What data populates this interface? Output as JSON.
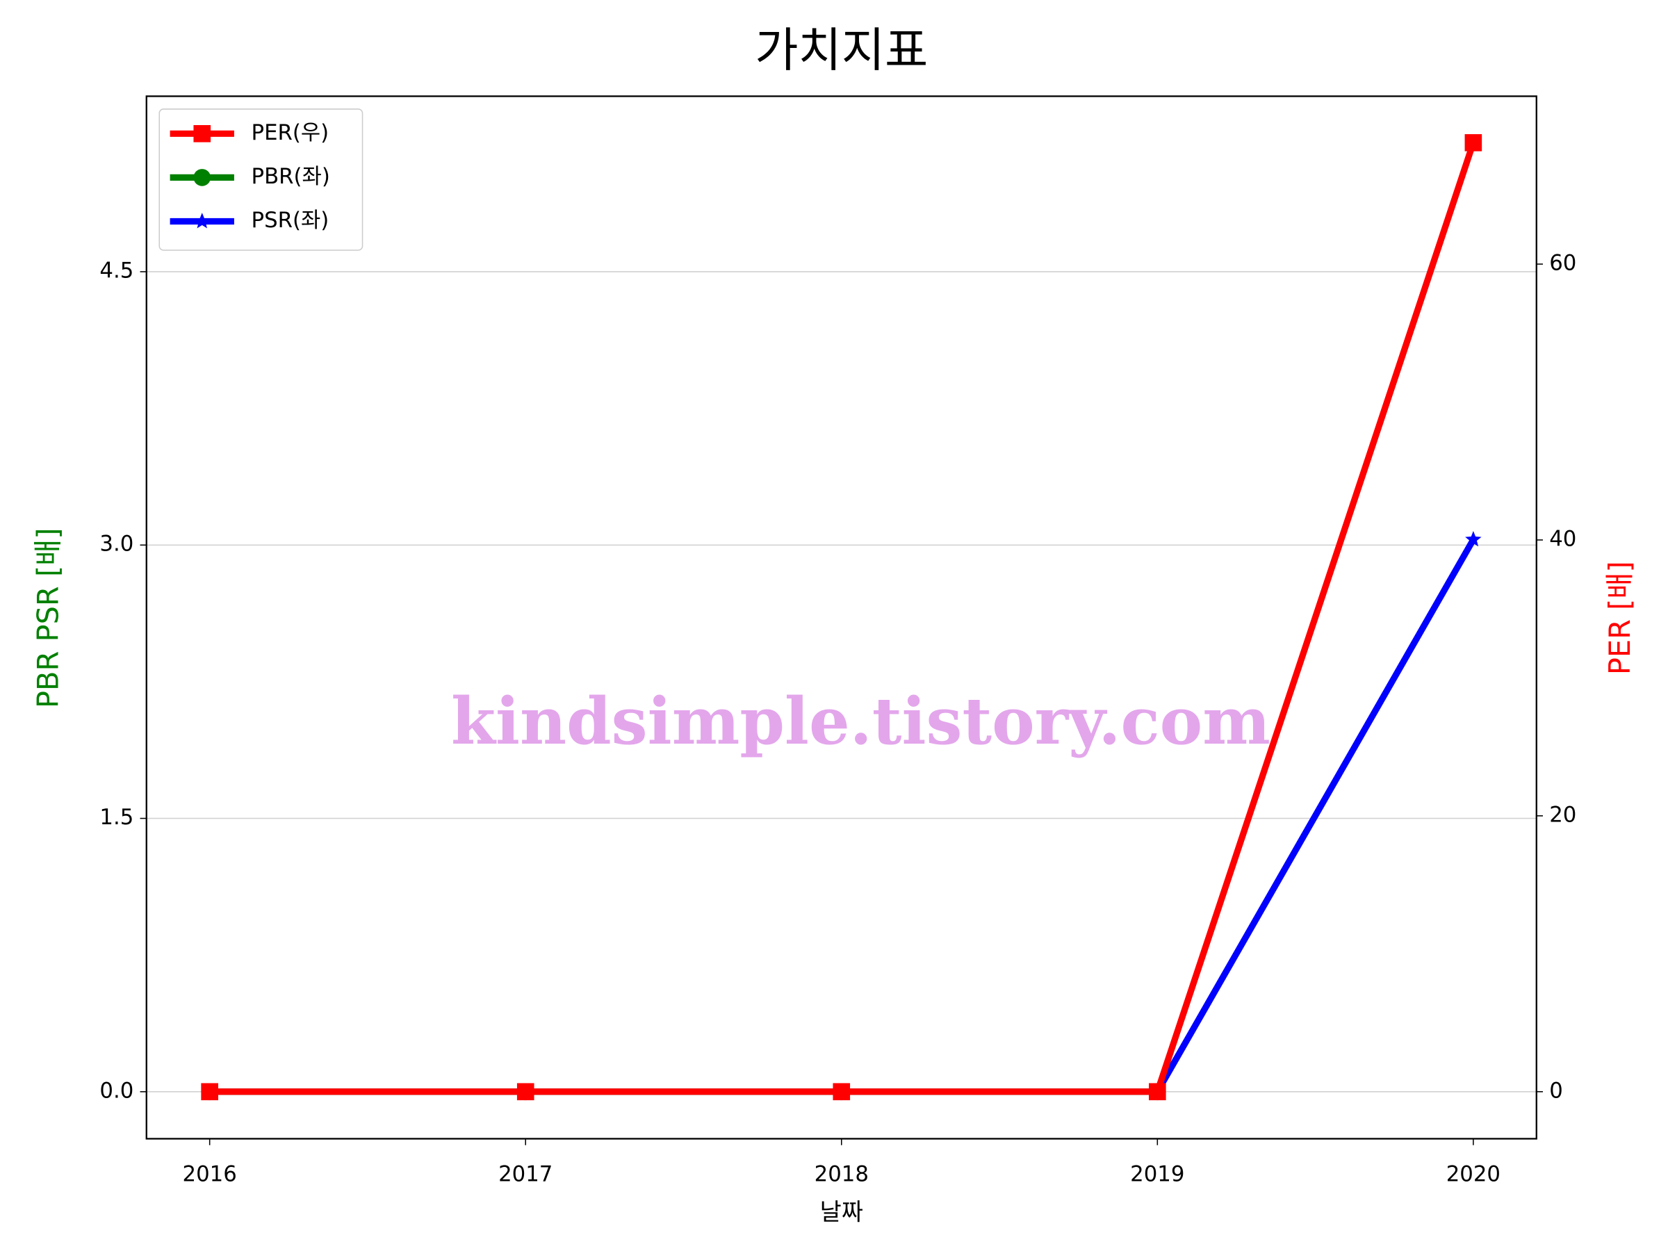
{
  "chart_data": {
    "type": "line",
    "title": "가치지표",
    "x_label": "날짜",
    "y_label": "PBR PSR [배]",
    "y2_label": "PER [배]",
    "y_label_color": "#008000",
    "y2_label_color": "#ff0000",
    "x": [
      2016,
      2017,
      2018,
      2019,
      2020
    ],
    "xlim": [
      2015.8,
      2020.2
    ],
    "xticks": [
      2016,
      2017,
      2018,
      2019,
      2020
    ],
    "ylim": [
      -0.258,
      5.463
    ],
    "yticks": [
      {
        "value": 0,
        "label": "0.0"
      },
      1.5,
      {
        "value": 3,
        "label": "3.0"
      },
      4.5
    ],
    "y2lim": [
      -3.41,
      72.17
    ],
    "y2ticks": [
      0,
      20,
      40,
      60
    ],
    "grid": true,
    "legend": "upper left",
    "annotation": "kindsimple.tistory.com",
    "series": [
      {
        "name": "PER(우)",
        "color": "#ff0000",
        "marker": "square",
        "axis": "y2",
        "values": [
          0,
          0,
          0,
          0,
          68.8
        ]
      },
      {
        "name": "PBR(좌)",
        "color": "#008000",
        "marker": "circle",
        "values": [
          0,
          0,
          0,
          0,
          null
        ]
      },
      {
        "name": "PSR(좌)",
        "color": "#0000ff",
        "marker": "star",
        "values": [
          0,
          0,
          0,
          0,
          3.03
        ]
      }
    ]
  }
}
